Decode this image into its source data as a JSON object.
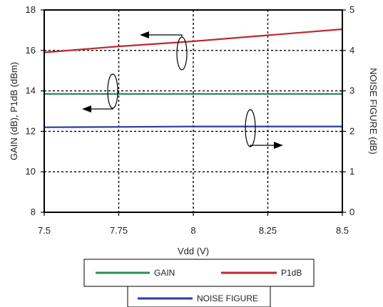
{
  "chart_data": {
    "type": "line",
    "x": [
      7.5,
      7.75,
      8,
      8.25,
      8.5
    ],
    "xlabel": "Vdd (V)",
    "ylabel_left": "GAIN (dB), P1dB (dBm)",
    "ylabel_right": "NOISE FIGURE (dB)",
    "xlim": [
      7.5,
      8.5
    ],
    "ylim_left": [
      8,
      18
    ],
    "ylim_right": [
      0,
      5
    ],
    "x_ticks": [
      "7.5",
      "7.75",
      "8",
      "8.25",
      "8.5"
    ],
    "y_ticks_left": [
      "8",
      "10",
      "12",
      "14",
      "16",
      "18"
    ],
    "y_ticks_right": [
      "0",
      "1",
      "2",
      "3",
      "4",
      "5"
    ],
    "grid": true,
    "series": [
      {
        "name": "GAIN",
        "axis": "left",
        "color": "#2e8b57",
        "values": [
          13.85,
          13.85,
          13.85,
          13.85,
          13.85
        ]
      },
      {
        "name": "P1dB",
        "axis": "left",
        "color": "#c0282d",
        "values": [
          15.9,
          16.2,
          16.45,
          16.75,
          17.05
        ]
      },
      {
        "name": "NOISE FIGURE",
        "axis": "right",
        "color": "#2a3a9c",
        "values": [
          2.1,
          2.11,
          2.12,
          2.12,
          2.12
        ]
      }
    ],
    "legend_position": "bottom"
  }
}
